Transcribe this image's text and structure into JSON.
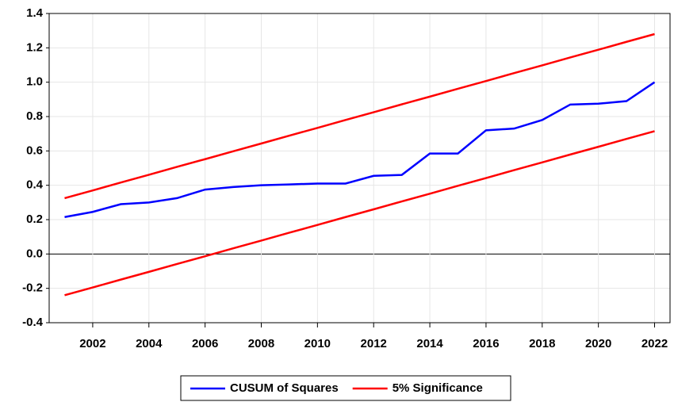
{
  "chart_data": {
    "type": "line",
    "x": [
      2001,
      2002,
      2003,
      2004,
      2005,
      2006,
      2007,
      2008,
      2009,
      2010,
      2011,
      2012,
      2013,
      2014,
      2015,
      2016,
      2017,
      2018,
      2019,
      2020,
      2021,
      2022
    ],
    "series": [
      {
        "name": "CUSUM of Squares",
        "color": "#0000ff",
        "values": [
          0.215,
          0.245,
          0.29,
          0.3,
          0.325,
          0.375,
          0.39,
          0.4,
          0.405,
          0.41,
          0.41,
          0.455,
          0.46,
          0.585,
          0.585,
          0.72,
          0.73,
          0.78,
          0.87,
          0.875,
          0.89,
          1.0
        ]
      },
      {
        "name": "5% Significance",
        "color": "#ff0000",
        "values": [
          0.325,
          0.37,
          0.416,
          0.461,
          0.507,
          0.552,
          0.598,
          0.643,
          0.689,
          0.734,
          0.78,
          0.825,
          0.871,
          0.916,
          0.962,
          1.007,
          1.053,
          1.098,
          1.144,
          1.189,
          1.235,
          1.28
        ]
      },
      {
        "color": "#ff0000",
        "values": [
          -0.24,
          -0.195,
          -0.149,
          -0.104,
          -0.058,
          -0.013,
          0.033,
          0.078,
          0.124,
          0.169,
          0.215,
          0.26,
          0.306,
          0.351,
          0.397,
          0.442,
          0.488,
          0.533,
          0.579,
          0.624,
          0.67,
          0.715
        ]
      }
    ],
    "xlim": [
      2000.45,
      2022.55
    ],
    "xticks": [
      2002,
      2004,
      2006,
      2008,
      2010,
      2012,
      2014,
      2016,
      2018,
      2020,
      2022
    ],
    "ylim": [
      -0.4,
      1.4
    ],
    "yticks": [
      {
        "value": 1.4,
        "label": "1.4"
      },
      {
        "value": 1.2,
        "label": "1.2"
      },
      {
        "value": 1.0,
        "label": "1.0"
      },
      {
        "value": 0.8,
        "label": "0.8"
      },
      {
        "value": 0.6,
        "label": "0.6"
      },
      {
        "value": 0.4,
        "label": "0.4"
      },
      {
        "value": 0.2,
        "label": "0.2"
      },
      {
        "value": 0.0,
        "label": "0.0"
      },
      {
        "value": -0.2,
        "label": "-0.2"
      },
      {
        "value": -0.4,
        "label": "-0.4"
      }
    ],
    "grid": true,
    "legend": "bottom"
  }
}
